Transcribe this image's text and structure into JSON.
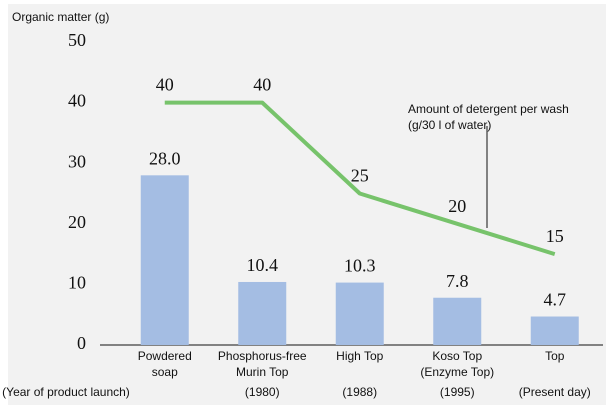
{
  "chart_data": {
    "type": "bar+line",
    "y_label": "Organic matter (g)",
    "categories": [
      [
        "Powdered",
        "soap"
      ],
      [
        "Phosphorus-free",
        "Murin Top"
      ],
      [
        "High Top"
      ],
      [
        "Koso Top",
        "(Enzyme Top)"
      ],
      [
        "Top"
      ]
    ],
    "x_label": "(Year of product launch)",
    "years": [
      null,
      "(1980)",
      "(1988)",
      "(1995)",
      "(Present day)"
    ],
    "ylim": [
      0,
      50
    ],
    "yticks": [
      0,
      10,
      20,
      30,
      40,
      50
    ],
    "series": [
      {
        "type": "bar",
        "color": "#a4bde3",
        "values": [
          28.0,
          10.4,
          10.3,
          7.8,
          4.7
        ],
        "value_labels": [
          "28.0",
          "10.4",
          "10.3",
          "7.8",
          "4.7"
        ]
      },
      {
        "type": "line",
        "name": [
          "Amount of detergent per wash",
          "(g/30 l of water)"
        ],
        "color": "#77c36b",
        "values": [
          40,
          40,
          25,
          20,
          15
        ]
      }
    ]
  }
}
